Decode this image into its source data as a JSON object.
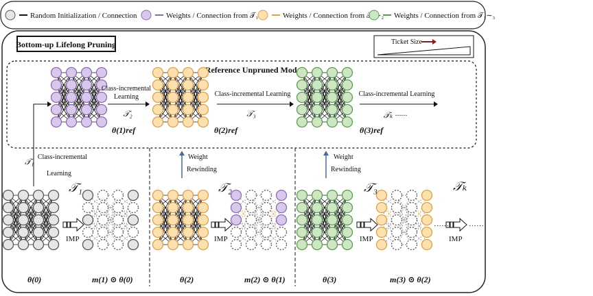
{
  "legend": {
    "random_text": "Random Initialization / Connection",
    "t1_text": "Weights / Connection from 𝒯₁",
    "t12_text": "Weights / Connection from 𝒯₁∼₂",
    "t13_text": "Weights / Connection from 𝒯₁∼₃"
  },
  "title": "Bottom-up Lifelong Pruning",
  "ticket_size_label": "Ticket Size",
  "reference_title": "Reference Unpruned Model",
  "transitions": [
    {
      "line1": "Class-incremental",
      "line2": "Learning",
      "task": "𝒯₂"
    },
    {
      "line1": "Class-incremental Learning",
      "line2": "",
      "task": "𝒯₃"
    },
    {
      "line1": "Class-incremental Learning",
      "line2": "",
      "task": "𝒯ₖ ······"
    }
  ],
  "left_transition": {
    "task": "𝒯₁",
    "line1": "Class-incremental",
    "line2": "Learning"
  },
  "rewind": {
    "line1": "Weight",
    "line2": "Rewinding"
  },
  "ref_labels": [
    "θ(1)ref",
    "θ(2)ref",
    "θ(3)ref"
  ],
  "task_labels": [
    "𝒯₁",
    "𝒯₂",
    "𝒯₃",
    "𝒯ₖ"
  ],
  "imp_label": "IMP",
  "bottom_labels": [
    "θ(0)",
    "m(1) ⊙ θ(0)",
    "θ(2)",
    "m(2) ⊙ θ(1)",
    "θ(3)",
    "m(3) ⊙ θ(2)"
  ],
  "dots": "······",
  "colors": {
    "gray_fill": "#e6e6e6",
    "gray_stroke": "#555555",
    "purple_fill": "#d9c8ea",
    "purple_stroke": "#8a6bb8",
    "orange_fill": "#fbe0b0",
    "orange_stroke": "#e0a040",
    "green_fill": "#cfe6c4",
    "green_stroke": "#5a9a4e"
  }
}
